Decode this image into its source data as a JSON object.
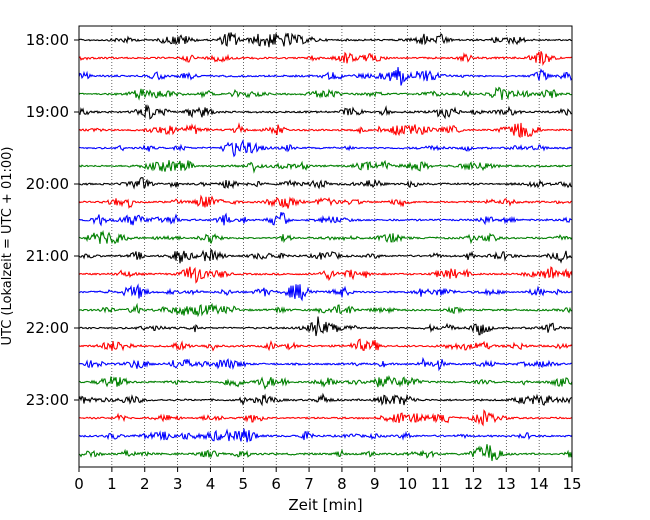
{
  "chart_data": {
    "type": "line",
    "title": "",
    "xlabel": "Zeit  [min]",
    "ylabel": "UTC (Lokalzeit = UTC + 01:00)",
    "xlim": [
      0,
      15
    ],
    "x_ticks": [
      "0",
      "1",
      "2",
      "3",
      "4",
      "5",
      "6",
      "7",
      "8",
      "9",
      "10",
      "11",
      "12",
      "13",
      "14",
      "15"
    ],
    "y_tick_labels": [
      "18:00",
      "19:00",
      "20:00",
      "21:00",
      "22:00",
      "23:00"
    ],
    "vertical_grid": true,
    "grid_style": "dotted",
    "trace_interval_minutes": 15,
    "trace_start": "18:00",
    "trace_count": 24,
    "trace_colors": [
      "#000000",
      "#ff0000",
      "#0000ff",
      "#008000"
    ]
  }
}
